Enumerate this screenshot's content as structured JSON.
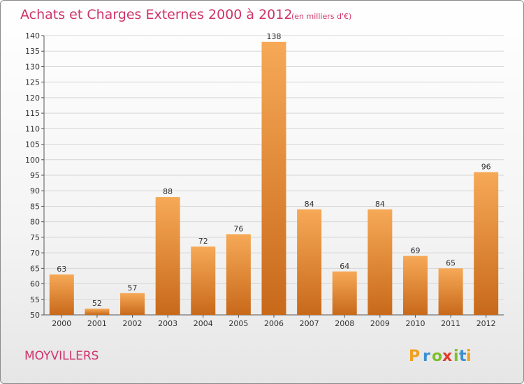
{
  "chart_data": {
    "type": "bar",
    "title": "Achats et Charges Externes 2000 à 2012",
    "subtitle": "(en milliers d'€)",
    "categories": [
      "2000",
      "2001",
      "2002",
      "2003",
      "2004",
      "2005",
      "2006",
      "2007",
      "2008",
      "2009",
      "2010",
      "2011",
      "2012"
    ],
    "values": [
      63,
      52,
      57,
      88,
      72,
      76,
      138,
      84,
      64,
      84,
      69,
      65,
      96
    ],
    "ylim": [
      50,
      140
    ],
    "yticks": [
      50,
      55,
      60,
      65,
      70,
      75,
      80,
      85,
      90,
      95,
      100,
      105,
      110,
      115,
      120,
      125,
      130,
      135,
      140
    ],
    "grid": true,
    "xlabel": "",
    "ylabel": ""
  },
  "location": "MOYVILLERS",
  "logo": {
    "letters": [
      "P",
      "r",
      "o",
      "x",
      "i",
      "t",
      "i"
    ],
    "colors": [
      "#f0a020",
      "#3a8fd0",
      "#7cbf2a",
      "#e03a2a",
      "#7cbf2a",
      "#3a8fd0",
      "#f0a020"
    ]
  },
  "colors": {
    "bar_top": "#f6a957",
    "bar_bottom": "#c8691a",
    "title": "#d0336b"
  }
}
